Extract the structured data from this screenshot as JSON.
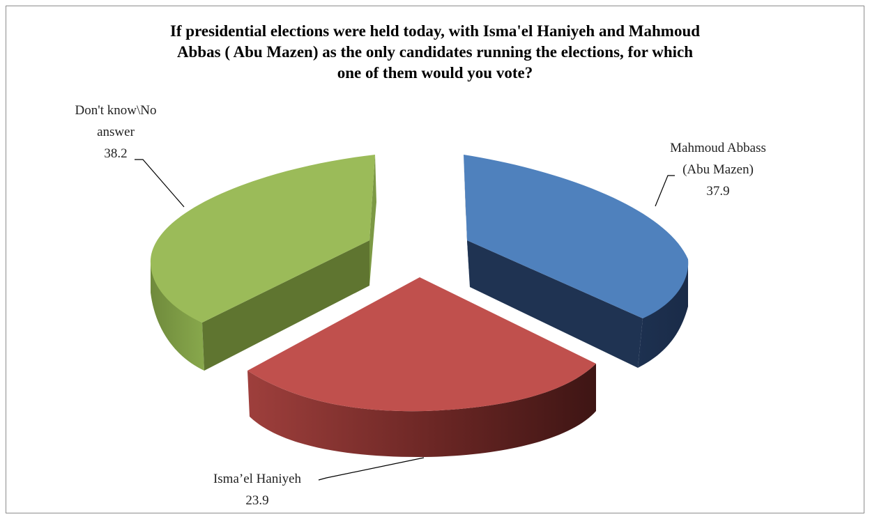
{
  "chart_data": {
    "type": "pie",
    "title_lines": [
      "If presidential elections were held today, with Isma'el Haniyeh and Mahmoud",
      "Abbas ( Abu Mazen) as the only candidates running the elections, for which",
      "one of them would you vote?"
    ],
    "slices": [
      {
        "label_lines": [
          "Mahmoud Abbass",
          "(Abu Mazen)"
        ],
        "value": 37.9,
        "value_text": "37.9",
        "color": "#4F81BD"
      },
      {
        "label_lines": [
          "Isma’el Haniyeh"
        ],
        "value": 23.9,
        "value_text": "23.9",
        "color": "#C0504D"
      },
      {
        "label_lines": [
          "Don't know\\No",
          "answer"
        ],
        "value": 38.2,
        "value_text": "38.2",
        "color": "#9BBB59"
      }
    ],
    "style": "3d-exploded"
  }
}
